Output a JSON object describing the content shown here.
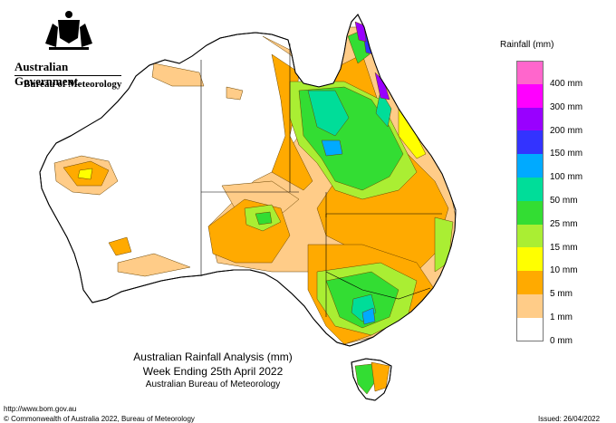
{
  "header": {
    "government": "Australian Government",
    "bureau": "Bureau of Meteorology"
  },
  "legend": {
    "title": "Rainfall (mm)",
    "items": [
      {
        "label": "400 mm",
        "color": "#ff66cc"
      },
      {
        "label": "300 mm",
        "color": "#ff00ff"
      },
      {
        "label": "200 mm",
        "color": "#9900ff"
      },
      {
        "label": "150 mm",
        "color": "#3333ff"
      },
      {
        "label": "100 mm",
        "color": "#00aaff"
      },
      {
        "label": "50 mm",
        "color": "#00dd99"
      },
      {
        "label": "25 mm",
        "color": "#33dd33"
      },
      {
        "label": "15 mm",
        "color": "#aaee33"
      },
      {
        "label": "10 mm",
        "color": "#ffff00"
      },
      {
        "label": "5 mm",
        "color": "#ffaa00"
      },
      {
        "label": "1 mm",
        "color": "#ffcc88"
      },
      {
        "label": "0 mm",
        "color": "#ffffff"
      }
    ]
  },
  "caption": {
    "line1": "Australian Rainfall Analysis (mm)",
    "line2": "Week Ending 25th April 2022",
    "line3": "Australian Bureau of Meteorology"
  },
  "footer": {
    "url": "http://www.bom.gov.au",
    "copyright": "© Commonwealth of Australia 2022, Bureau of Meteorology",
    "issued": "Issued: 26/04/2022"
  }
}
